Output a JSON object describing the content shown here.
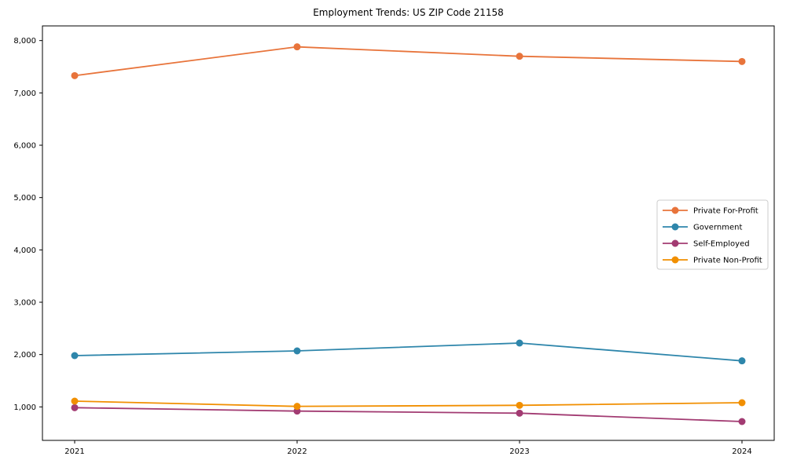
{
  "title": "Employment Trends: US ZIP Code 21158",
  "chart_data": {
    "type": "line",
    "x": [
      "2021",
      "2022",
      "2023",
      "2024"
    ],
    "series": [
      {
        "name": "Private For-Profit",
        "color": "#E8743B",
        "values": [
          7330,
          7880,
          7700,
          7600
        ]
      },
      {
        "name": "Government",
        "color": "#2E86AB",
        "values": [
          1980,
          2070,
          2220,
          1880
        ]
      },
      {
        "name": "Self-Employed",
        "color": "#A23B72",
        "values": [
          985,
          920,
          880,
          720
        ]
      },
      {
        "name": "Private Non-Profit",
        "color": "#F18F01",
        "values": [
          1110,
          1010,
          1030,
          1080
        ]
      }
    ],
    "yticks": [
      1000,
      2000,
      3000,
      4000,
      5000,
      6000,
      7000,
      8000
    ],
    "ylim": [
      360,
      8280
    ],
    "xlabel": "",
    "ylabel": "",
    "grid": false,
    "legend_position": "center right",
    "axis_color": "#000000",
    "legend_border_color": "#cccccc",
    "background": "#ffffff"
  }
}
